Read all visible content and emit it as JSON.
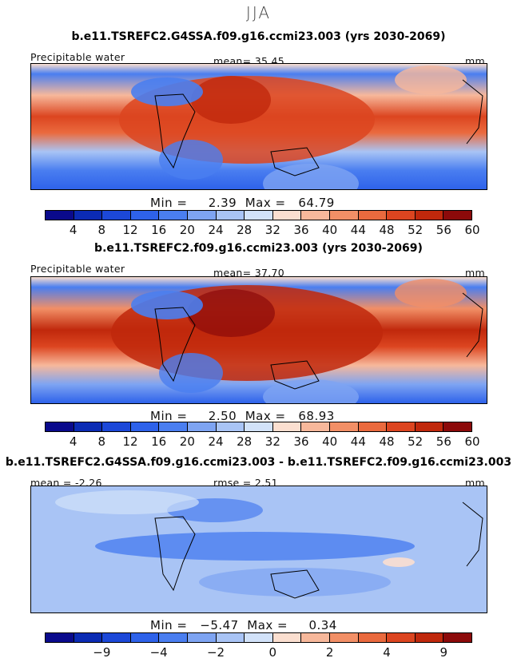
{
  "season": "JJA",
  "panels": [
    {
      "title": "b.e11.TSREFC2.G4SSA.f09.g16.ccmi23.003 (yrs 2030-2069)",
      "left_label": "Precipitable water",
      "center_label": "mean=   35.45",
      "right_label": "mm",
      "min_max": "Min =     2.39  Max =   64.79",
      "scale": "abs"
    },
    {
      "title": "b.e11.TSREFC2.f09.g16.ccmi23.003 (yrs 2030-2069)",
      "left_label": "Precipitable water",
      "center_label": "mean=   37.70",
      "right_label": "mm",
      "min_max": "Min =     2.50  Max =   68.93",
      "scale": "abs"
    },
    {
      "title": "b.e11.TSREFC2.G4SSA.f09.g16.ccmi23.003 - b.e11.TSREFC2.f09.g16.ccmi23.003",
      "left_label": "mean =   -2.26",
      "center_label": "rmse =     2.51",
      "right_label": "mm",
      "min_max": "Min =   −5.47  Max =     0.34",
      "scale": "diff"
    }
  ],
  "chart_data": [
    {
      "type": "heatmap",
      "title": "b.e11.TSREFC2.G4SSA.f09.g16.ccmi23.003 (yrs 2030-2069)",
      "variable": "Precipitable water",
      "units": "mm",
      "mean": 35.45,
      "min": 2.39,
      "max": 64.79,
      "colorbar_levels": [
        4,
        8,
        12,
        16,
        20,
        24,
        28,
        32,
        36,
        40,
        44,
        48,
        52,
        56,
        60
      ],
      "colorbar_tick_labels": [
        "4",
        "8",
        "12",
        "16",
        "20",
        "24",
        "28",
        "32",
        "36",
        "40",
        "44",
        "48",
        "52",
        "56",
        "60"
      ]
    },
    {
      "type": "heatmap",
      "title": "b.e11.TSREFC2.f09.g16.ccmi23.003 (yrs 2030-2069)",
      "variable": "Precipitable water",
      "units": "mm",
      "mean": 37.7,
      "min": 2.5,
      "max": 68.93,
      "colorbar_levels": [
        4,
        8,
        12,
        16,
        20,
        24,
        28,
        32,
        36,
        40,
        44,
        48,
        52,
        56,
        60
      ],
      "colorbar_tick_labels": [
        "4",
        "8",
        "12",
        "16",
        "20",
        "24",
        "28",
        "32",
        "36",
        "40",
        "44",
        "48",
        "52",
        "56",
        "60"
      ]
    },
    {
      "type": "heatmap",
      "title": "b.e11.TSREFC2.G4SSA.f09.g16.ccmi23.003 - b.e11.TSREFC2.f09.g16.ccmi23.003",
      "units": "mm",
      "mean": -2.26,
      "rmse": 2.51,
      "min": -5.47,
      "max": 0.34,
      "colorbar_tick_labels": [
        "−9",
        "−4",
        "−2",
        "0",
        "2",
        "4",
        "9"
      ]
    }
  ],
  "colors": {
    "abs": [
      "#0a0a8c",
      "#0b2bb4",
      "#1c48d8",
      "#2e62ea",
      "#4a7ef0",
      "#7ea4f2",
      "#a9c4f5",
      "#d2e2f9",
      "#fbdfd0",
      "#f7b89b",
      "#f28f66",
      "#ea6a3e",
      "#dc4520",
      "#c0280c",
      "#8c0a0a"
    ],
    "diff": [
      "#0a0a8c",
      "#0b2bb4",
      "#1c48d8",
      "#2e62ea",
      "#4a7ef0",
      "#7ea4f2",
      "#a9c4f5",
      "#d2e2f9",
      "#fbdfd0",
      "#f7b89b",
      "#f28f66",
      "#ea6a3e",
      "#dc4520",
      "#c0280c",
      "#8c0a0a"
    ]
  }
}
